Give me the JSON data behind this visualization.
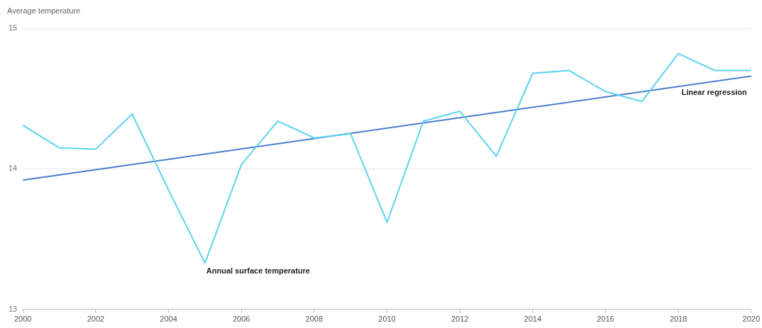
{
  "chart_data": {
    "type": "line",
    "ylabel": "Average temperature",
    "xlim": [
      2000,
      2020
    ],
    "xticks": [
      2000,
      2002,
      2004,
      2006,
      2008,
      2010,
      2012,
      2014,
      2016,
      2018,
      2020
    ],
    "ylim": [
      13,
      15
    ],
    "yticks": [
      13,
      14,
      15
    ],
    "grid": "y",
    "legend": false,
    "marker": "none",
    "line_style": "solid",
    "series": [
      {
        "name": "Annual surface temperature",
        "color": "#5dd3ee",
        "x": [
          2000,
          2001,
          2002,
          2003,
          2004,
          2005,
          2006,
          2007,
          2008,
          2009,
          2010,
          2011,
          2012,
          2013,
          2014,
          2015,
          2016,
          2017,
          2018,
          2019,
          2020
        ],
        "values": [
          14.31,
          14.15,
          14.14,
          14.39,
          13.85,
          13.33,
          14.03,
          14.34,
          14.22,
          14.25,
          13.62,
          14.34,
          14.41,
          14.09,
          14.68,
          14.7,
          14.55,
          14.48,
          14.82,
          14.7,
          14.7
        ]
      },
      {
        "name": "Linear regression",
        "color": "#4a7dcf",
        "x": [
          2000,
          2020
        ],
        "values": [
          13.92,
          14.66
        ]
      }
    ]
  }
}
